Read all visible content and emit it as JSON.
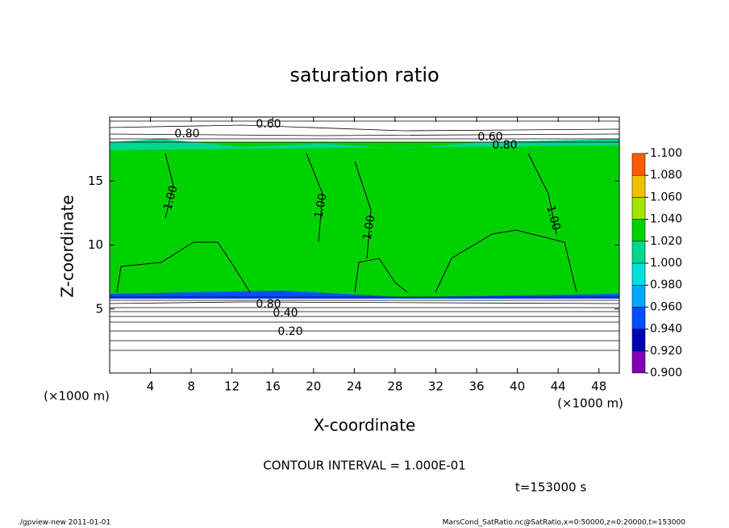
{
  "chart_data": {
    "type": "contour",
    "title": "saturation ratio",
    "x_label": "X-coordinate",
    "y_label": "Z-coordinate",
    "x_unit_label": "(×1000 m)",
    "y_unit_label": "(×1000 m)",
    "xlim": [
      0,
      50
    ],
    "ylim": [
      0,
      20
    ],
    "xticks": [
      4,
      8,
      12,
      16,
      20,
      24,
      28,
      32,
      36,
      40,
      44,
      48
    ],
    "yticks": [
      5,
      10,
      15
    ],
    "levels": [
      {
        "value": 0.9,
        "label": "0.900"
      },
      {
        "value": 0.92,
        "label": "0.920"
      },
      {
        "value": 0.94,
        "label": "0.940"
      },
      {
        "value": 0.96,
        "label": "0.960"
      },
      {
        "value": 0.98,
        "label": "0.980"
      },
      {
        "value": 1.0,
        "label": "1.000"
      },
      {
        "value": 1.02,
        "label": "1.020"
      },
      {
        "value": 1.04,
        "label": "1.040"
      },
      {
        "value": 1.06,
        "label": "1.060"
      },
      {
        "value": 1.08,
        "label": "1.080"
      },
      {
        "value": 1.1,
        "label": "1.100"
      }
    ],
    "colors": [
      "#8000b0",
      "#0000b4",
      "#0050ff",
      "#00a8ff",
      "#00e0e0",
      "#00d890",
      "#00d200",
      "#a0e600",
      "#f0c000",
      "#ff5a00"
    ],
    "top_color": "#ff8080",
    "contour_labels": [
      "0.60",
      "0.60",
      "0.80",
      "0.80",
      "1.00",
      "1.00",
      "1.00",
      "1.00",
      "0.80",
      "0.40",
      "0.20"
    ],
    "contour_interval": "CONTOUR INTERVAL = 1.000E-01",
    "time_label": "t=153000 s",
    "footer_left": "./gpview-new   2011-01-01",
    "footer_right": "MarsCond_SatRatio.nc@SatRatio,x=0:50000,z=0:20000,t=153000"
  }
}
